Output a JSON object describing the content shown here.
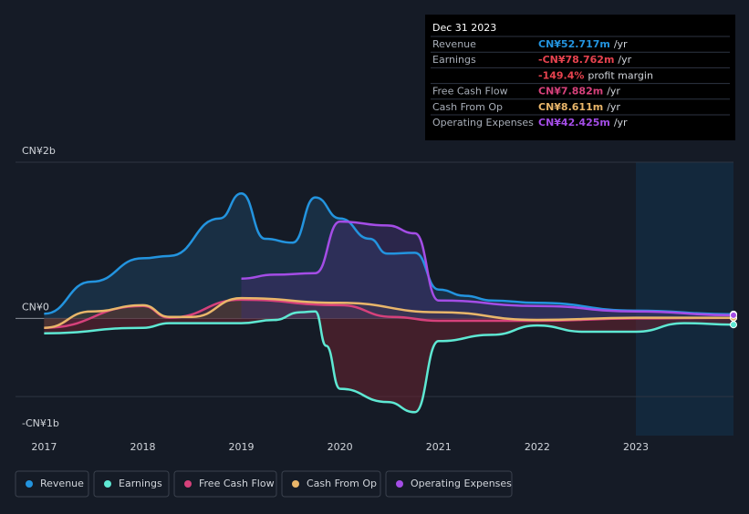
{
  "chart_data": {
    "type": "line",
    "xticks": [
      2017,
      2018,
      2019,
      2020,
      2021,
      2022,
      2023
    ],
    "xlim": [
      2016.71,
      2023.99
    ],
    "ylim": [
      -1.5,
      2
    ],
    "yticks": [
      {
        "value": 2,
        "label": "CN¥2b"
      },
      {
        "value": 0,
        "label": "CN¥0"
      },
      {
        "value": -1,
        "label": "-CN¥1b"
      }
    ],
    "series": [
      {
        "name": "Revenue",
        "color": "#2394df",
        "fill_color": "#1e3f5c",
        "x": [
          2017.0,
          2017.48,
          2018.0,
          2018.27,
          2018.78,
          2019.0,
          2019.24,
          2019.52,
          2019.75,
          2020.0,
          2020.3,
          2020.48,
          2020.76,
          2021.0,
          2021.27,
          2021.54,
          2022.0,
          2023.0,
          2023.99
        ],
        "values": [
          0.06,
          0.47,
          0.77,
          0.8,
          1.28,
          1.6,
          1.02,
          0.97,
          1.55,
          1.28,
          1.02,
          0.83,
          0.84,
          0.37,
          0.29,
          0.23,
          0.2,
          0.1,
          0.053
        ]
      },
      {
        "name": "Earnings",
        "color": "#5ee8d3",
        "fill_color": "#6a2330",
        "x": [
          2017.0,
          2018.0,
          2018.27,
          2019.0,
          2019.33,
          2019.6,
          2019.75,
          2019.86,
          2020.0,
          2020.48,
          2020.76,
          2021.0,
          2021.54,
          2022.0,
          2022.47,
          2023.0,
          2023.49,
          2023.99
        ],
        "values": [
          -0.19,
          -0.12,
          -0.06,
          -0.06,
          -0.02,
          0.08,
          0.09,
          -0.35,
          -0.9,
          -1.07,
          -1.2,
          -0.29,
          -0.21,
          -0.09,
          -0.17,
          -0.17,
          -0.06,
          -0.079
        ]
      },
      {
        "name": "Free Cash Flow",
        "color": "#d6417b",
        "fill_color": "#5a2440",
        "x": [
          2017.0,
          2018.0,
          2018.27,
          2019.0,
          2020.0,
          2020.53,
          2021.0,
          2022.0,
          2023.0,
          2023.99
        ],
        "values": [
          -0.12,
          0.16,
          0.01,
          0.24,
          0.17,
          0.02,
          -0.03,
          -0.03,
          0.0,
          0.008
        ]
      },
      {
        "name": "Cash From Op",
        "color": "#e9b66a",
        "fill_color": "#4a4030",
        "x": [
          2017.0,
          2017.48,
          2018.0,
          2018.27,
          2018.5,
          2019.0,
          2020.0,
          2021.0,
          2022.0,
          2023.0,
          2023.99
        ],
        "values": [
          -0.12,
          0.09,
          0.17,
          0.02,
          0.02,
          0.26,
          0.2,
          0.08,
          -0.02,
          0.01,
          0.0086
        ]
      },
      {
        "name": "Operating Expenses",
        "color": "#a44de6",
        "fill_color": "#3e2f6a",
        "x": [
          2019.0,
          2019.33,
          2019.75,
          2020.0,
          2020.48,
          2020.76,
          2021.0,
          2022.0,
          2023.0,
          2023.99
        ],
        "values": [
          0.51,
          0.56,
          0.58,
          1.24,
          1.19,
          1.09,
          0.23,
          0.16,
          0.09,
          0.042
        ]
      }
    ],
    "tooltip": {
      "date": "Dec 31 2023",
      "rows": [
        {
          "label": "Revenue",
          "value": "CN¥52.717m",
          "unit": "/yr",
          "color": "#2394df"
        },
        {
          "label": "Earnings",
          "value": "-CN¥78.762m",
          "unit": "/yr",
          "color": "#e8434f"
        },
        {
          "label": null,
          "value": "-149.4%",
          "unit": "profit margin",
          "color": "#e8434f"
        },
        {
          "label": "Free Cash Flow",
          "value": "CN¥7.882m",
          "unit": "/yr",
          "color": "#d6417b"
        },
        {
          "label": "Cash From Op",
          "value": "CN¥8.611m",
          "unit": "/yr",
          "color": "#e9b66a"
        },
        {
          "label": "Operating Expenses",
          "value": "CN¥42.425m",
          "unit": "/yr",
          "color": "#a44de6"
        }
      ]
    }
  }
}
